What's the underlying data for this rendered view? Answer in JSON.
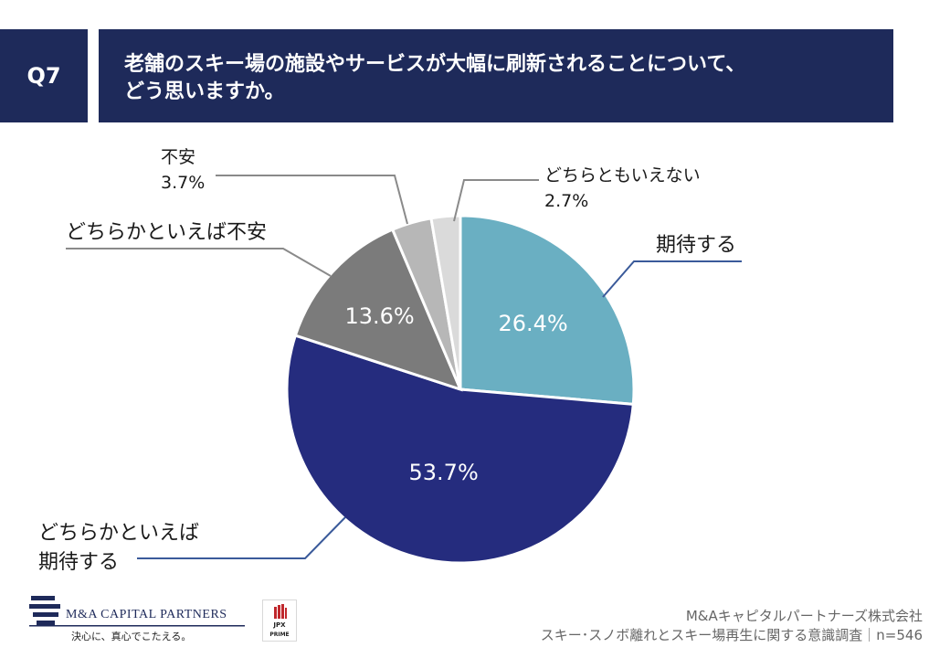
{
  "header": {
    "question_id": "Q7",
    "title_line1": "老舗のスキー場の施設やサービスが大幅に刷新されることについて、",
    "title_line2": "どう思いますか。"
  },
  "chart_data": {
    "type": "pie",
    "start_angle_deg": 0,
    "direction": "clockwise",
    "slices": [
      {
        "label": "期待する",
        "label_lines": [
          "期待する"
        ],
        "value": 26.4,
        "value_label": "26.4%",
        "color": "#6aafc2",
        "text_color": "#ffffff"
      },
      {
        "label": "どちらかといえば期待する",
        "label_lines": [
          "どちらかといえば",
          "期待する"
        ],
        "value": 53.7,
        "value_label": "53.7%",
        "color": "#252c7e",
        "text_color": "#ffffff"
      },
      {
        "label": "どちらかといえば不安",
        "label_lines": [
          "どちらかといえば不安"
        ],
        "value": 13.6,
        "value_label": "13.6%",
        "color": "#7b7b7b",
        "text_color": "#ffffff"
      },
      {
        "label": "不安",
        "label_lines": [
          "不安",
          "3.7%"
        ],
        "value": 3.7,
        "value_label": "",
        "color": "#b7b7b7",
        "text_color": "#1a1a1a"
      },
      {
        "label": "どちらともいえない",
        "label_lines": [
          "どちらともいえない",
          "2.7%"
        ],
        "value": 2.7,
        "value_label": "",
        "color": "#dadada",
        "text_color": "#1a1a1a"
      }
    ]
  },
  "footer": {
    "company_logo_text": "M&A CAPITAL PARTNERS",
    "slogan": "決心に、真心でこたえる。",
    "jpx_line1": "JPX",
    "jpx_line2": "PRIME",
    "credit_line1": "M&Aキャピタルパートナーズ株式会社",
    "credit_line2": "スキー･スノボ離れとスキー場再生に関する意識調査｜n=546"
  },
  "colors": {
    "header_bg": "#1e2a5a",
    "leader_line_blue": "#3a5a9a",
    "leader_line_gray": "#8a8a8a"
  }
}
